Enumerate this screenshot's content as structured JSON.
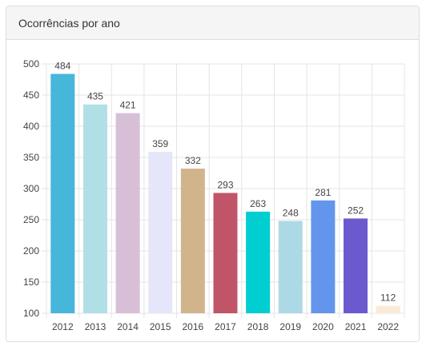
{
  "panel": {
    "title": "Ocorrências por ano"
  },
  "chart_data": {
    "type": "bar",
    "title": "",
    "xlabel": "",
    "ylabel": "",
    "categories": [
      "2012",
      "2013",
      "2014",
      "2015",
      "2016",
      "2017",
      "2018",
      "2019",
      "2020",
      "2021",
      "2022"
    ],
    "values": [
      484,
      435,
      421,
      359,
      332,
      293,
      263,
      248,
      281,
      252,
      112
    ],
    "colors": [
      "#46b6da",
      "#b0e0e6",
      "#d8bfd8",
      "#e6e6fa",
      "#d2b48c",
      "#c05468",
      "#00ced1",
      "#add8e6",
      "#6495ed",
      "#6a5acd",
      "#faebd7"
    ],
    "ylim": [
      100,
      500
    ],
    "yticks": [
      100,
      150,
      200,
      250,
      300,
      350,
      400,
      450,
      500
    ],
    "grid": true,
    "data_labels": true
  }
}
